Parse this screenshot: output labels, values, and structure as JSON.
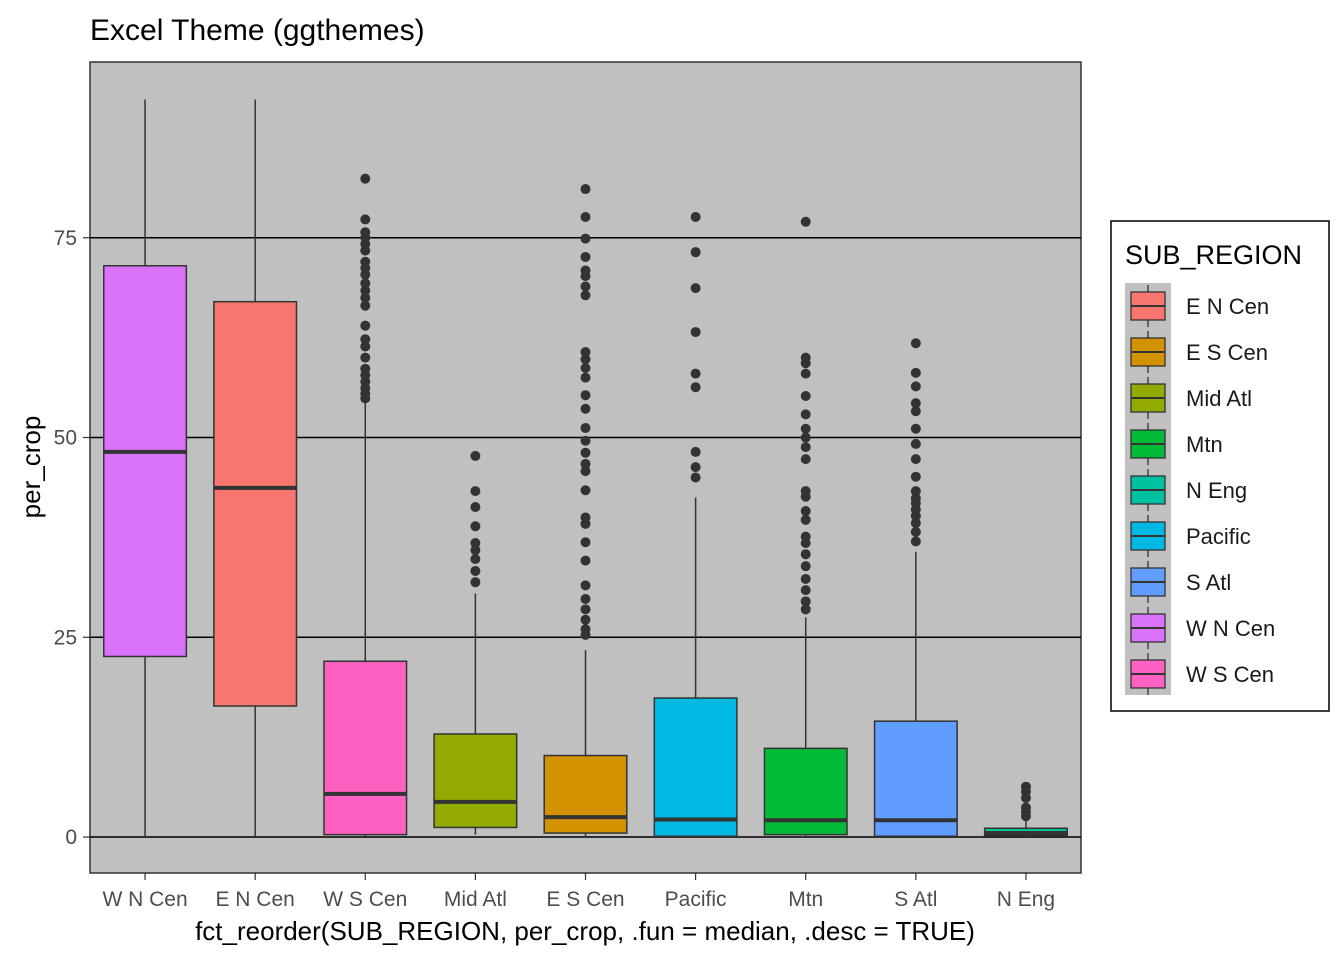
{
  "chart_data": {
    "type": "boxplot",
    "title": "Excel Theme (ggthemes)",
    "xlabel": "fct_reorder(SUB_REGION, per_crop, .fun = median, .desc = TRUE)",
    "ylabel": "per_crop",
    "ylim": [
      -4.5,
      97
    ],
    "yticks": [
      0,
      25,
      50,
      75
    ],
    "grid": "horizontal major lines",
    "legend_position": "right",
    "legend_title": "SUB_REGION",
    "categories": [
      "W N Cen",
      "E N Cen",
      "W S Cen",
      "Mid Atl",
      "E S Cen",
      "Pacific",
      "Mtn",
      "S Atl",
      "N Eng"
    ],
    "colors": {
      "E N Cen": "#F8766D",
      "E S Cen": "#D39200",
      "Mid Atl": "#93AA00",
      "Mtn": "#00BA38",
      "N Eng": "#00C19F",
      "Pacific": "#00B9E3",
      "S Atl": "#619CFF",
      "W N Cen": "#DB72FB",
      "W S Cen": "#FF61C3"
    },
    "boxes": [
      {
        "category": "W N Cen",
        "whisker_low": 0,
        "q1": 22.6,
        "median": 48.2,
        "q3": 71.5,
        "whisker_high": 92.3,
        "outliers": []
      },
      {
        "category": "E N Cen",
        "whisker_low": 0,
        "q1": 16.4,
        "median": 43.7,
        "q3": 67.0,
        "whisker_high": 92.3,
        "outliers": []
      },
      {
        "category": "W S Cen",
        "whisker_low": 0,
        "q1": 0.3,
        "median": 5.4,
        "q3": 22.0,
        "whisker_high": 54.4,
        "outliers": [
          54.9,
          55.5,
          56.2,
          57.0,
          57.8,
          58.6,
          60.0,
          61.4,
          62.3,
          64.0,
          66.5,
          67.5,
          68.4,
          69.3,
          70.4,
          71.2,
          72.0,
          73.4,
          74.2,
          75.0,
          75.7,
          77.3,
          82.4
        ]
      },
      {
        "category": "Mid Atl",
        "whisker_low": 0.3,
        "q1": 1.2,
        "median": 4.4,
        "q3": 12.9,
        "whisker_high": 30.5,
        "outliers": [
          31.9,
          33.3,
          34.8,
          35.9,
          36.8,
          38.9,
          41.3,
          43.3,
          47.7
        ]
      },
      {
        "category": "E S Cen",
        "whisker_low": 0,
        "q1": 0.5,
        "median": 2.5,
        "q3": 10.2,
        "whisker_high": 23.4,
        "outliers": [
          25.3,
          26.0,
          27.2,
          28.5,
          29.8,
          31.5,
          34.6,
          36.9,
          39.2,
          40.0,
          43.4,
          45.8,
          46.7,
          48.1,
          49.6,
          51.2,
          53.6,
          55.3,
          57.5,
          58.7,
          59.8,
          60.7,
          67.8,
          68.9,
          70.2,
          70.9,
          72.6,
          74.9,
          77.6,
          81.1
        ]
      },
      {
        "category": "Pacific",
        "whisker_low": 0,
        "q1": 0.1,
        "median": 2.2,
        "q3": 17.4,
        "whisker_high": 42.5,
        "outliers": [
          45.0,
          46.3,
          48.2,
          56.3,
          58.0,
          63.2,
          68.7,
          73.2,
          77.6
        ]
      },
      {
        "category": "Mtn",
        "whisker_low": 0,
        "q1": 0.3,
        "median": 2.1,
        "q3": 11.1,
        "whisker_high": 27.5,
        "outliers": [
          28.5,
          29.5,
          30.9,
          32.3,
          33.9,
          35.4,
          36.8,
          37.6,
          39.7,
          40.8,
          42.6,
          43.3,
          47.3,
          48.8,
          50.0,
          51.1,
          52.9,
          55.2,
          58.0,
          59.3,
          60.0,
          77.0
        ]
      },
      {
        "category": "S Atl",
        "whisker_low": 0,
        "q1": 0.1,
        "median": 2.1,
        "q3": 14.5,
        "whisker_high": 35.7,
        "outliers": [
          37.0,
          38.2,
          39.3,
          40.2,
          41.0,
          41.8,
          42.4,
          43.3,
          45.1,
          47.3,
          49.2,
          51.1,
          53.3,
          54.3,
          56.4,
          58.1,
          61.8
        ]
      },
      {
        "category": "N Eng",
        "whisker_low": 0,
        "q1": 0.2,
        "median": 0.5,
        "q3": 1.1,
        "whisker_high": 2.0,
        "outliers": [
          2.6,
          3.2,
          3.7,
          4.9,
          5.7,
          6.3
        ]
      }
    ]
  }
}
